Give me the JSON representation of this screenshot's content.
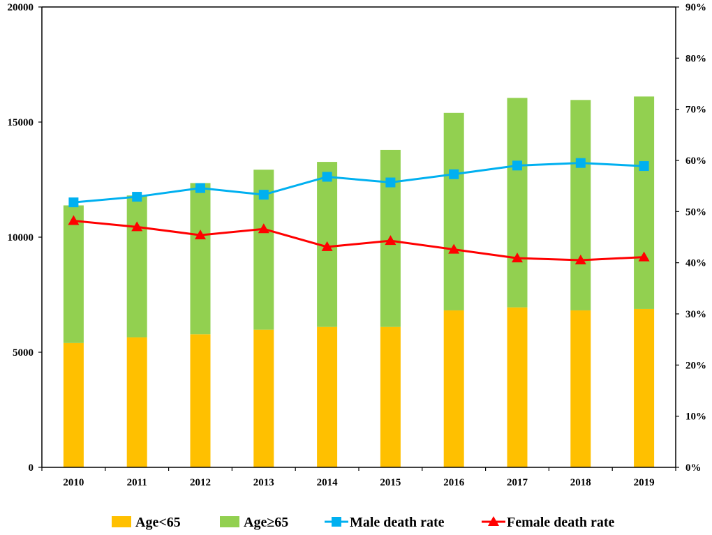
{
  "chart_data": {
    "type": "bar",
    "title": "",
    "xlabel": "",
    "ylabel": "",
    "categories": [
      "2010",
      "2011",
      "2012",
      "2013",
      "2014",
      "2015",
      "2016",
      "2017",
      "2018",
      "2019"
    ],
    "stacked": true,
    "series": [
      {
        "name": "Age<65",
        "type": "bar",
        "axis": "left",
        "color": "#FFC000",
        "values": [
          5400,
          5650,
          5780,
          5980,
          6100,
          6100,
          6820,
          6950,
          6820,
          6880
        ]
      },
      {
        "name": "Age≥65",
        "type": "bar",
        "axis": "left",
        "color": "#92D050",
        "values": [
          5980,
          6160,
          6570,
          6950,
          7170,
          7690,
          8580,
          9100,
          9140,
          9230
        ]
      },
      {
        "name": "Male death rate",
        "type": "line",
        "axis": "right",
        "color": "#00B0F0",
        "marker": "square",
        "values": [
          51.8,
          52.9,
          54.6,
          53.3,
          56.8,
          55.7,
          57.3,
          59.0,
          59.5,
          58.9
        ]
      },
      {
        "name": "Female death rate",
        "type": "line",
        "axis": "right",
        "color": "#FF0000",
        "marker": "triangle",
        "values": [
          48.2,
          47.0,
          45.4,
          46.6,
          43.1,
          44.3,
          42.6,
          40.9,
          40.5,
          41.1
        ]
      }
    ],
    "ylim": [
      0,
      20000
    ],
    "yticks": [
      0,
      5000,
      10000,
      15000,
      20000
    ],
    "ylim_right": [
      0,
      90
    ],
    "yticks_right": [
      "0%",
      "10%",
      "20%",
      "30%",
      "40%",
      "50%",
      "60%",
      "70%",
      "80%",
      "90%"
    ],
    "grid": false,
    "legend_position": "bottom"
  }
}
